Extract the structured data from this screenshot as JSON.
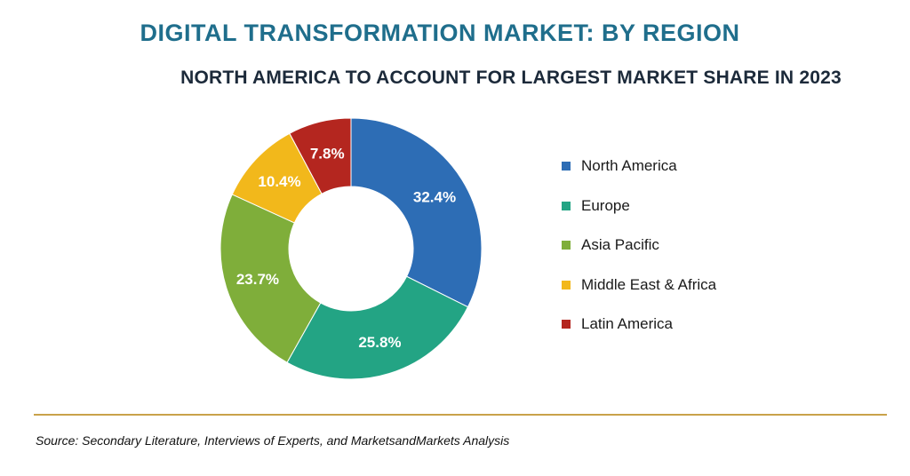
{
  "title": "DIGITAL TRANSFORMATION MARKET: BY REGION",
  "subtitle": "NORTH AMERICA TO ACCOUNT FOR LARGEST MARKET SHARE IN 2023",
  "source": "Source: Secondary Literature, Interviews of Experts, and MarketsandMarkets Analysis",
  "chart_data": {
    "type": "pie",
    "donut": true,
    "title": "DIGITAL TRANSFORMATION MARKET: BY REGION",
    "subtitle": "NORTH AMERICA TO ACCOUNT FOR LARGEST MARKET SHARE IN 2023",
    "legend_position": "right",
    "categories": [
      "North America",
      "Europe",
      "Asia Pacific",
      "Middle East & Africa",
      "Latin America"
    ],
    "values": [
      32.4,
      25.8,
      23.7,
      10.4,
      7.8
    ],
    "value_labels": [
      "32.4%",
      "25.8%",
      "23.7%",
      "10.4%",
      "7.8%"
    ],
    "colors": [
      "#2d6db5",
      "#23a484",
      "#7fae3a",
      "#f2b81b",
      "#b4261f"
    ]
  }
}
